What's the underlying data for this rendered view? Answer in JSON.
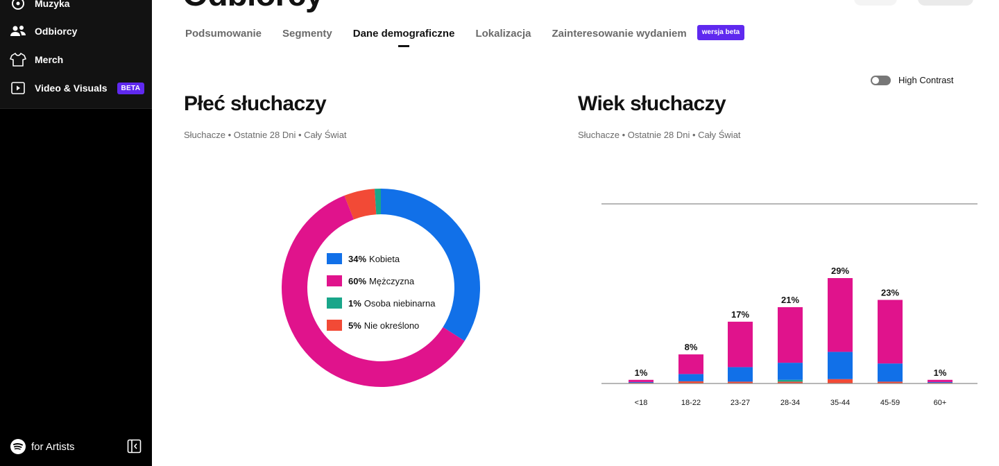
{
  "sidebar": {
    "items": [
      {
        "label": "Muzyka",
        "icon": "music-disc-icon"
      },
      {
        "label": "Odbiorcy",
        "icon": "audience-icon"
      },
      {
        "label": "Merch",
        "icon": "tshirt-icon"
      },
      {
        "label": "Video & Visuals",
        "icon": "video-icon",
        "badge": "BETA"
      }
    ],
    "brand": "for Artists"
  },
  "header": {
    "title": "Odbiorcy",
    "tabs": [
      {
        "label": "Podsumowanie",
        "active": false
      },
      {
        "label": "Segmenty",
        "active": false
      },
      {
        "label": "Dane demograficzne",
        "active": true
      },
      {
        "label": "Lokalizacja",
        "active": false
      },
      {
        "label": "Zainteresowanie wydaniem",
        "active": false
      }
    ],
    "tab_badge": "wersja beta"
  },
  "high_contrast": {
    "label": "High Contrast",
    "on": false
  },
  "gender_section": {
    "title": "Płeć słuchaczy",
    "subtitle": "Słuchacze • Ostatnie 28 Dni • Cały Świat"
  },
  "age_section": {
    "title": "Wiek słuchaczy",
    "subtitle": "Słuchacze • Ostatnie 28 Dni • Cały Świat"
  },
  "colors": {
    "female": "#1170e8",
    "male": "#e0138c",
    "nonbinary": "#19a68a",
    "unspecified": "#f24a36",
    "accent": "#5f29ef"
  },
  "chart_data": [
    {
      "type": "pie",
      "slices": [
        {
          "label": "Kobieta",
          "value": 34,
          "pct_text": "34%",
          "color": "#1170e8"
        },
        {
          "label": "Mężczyzna",
          "value": 60,
          "pct_text": "60%",
          "color": "#e0138c"
        },
        {
          "label": "Osoba niebinarna",
          "value": 1,
          "pct_text": "1%",
          "color": "#19a68a"
        },
        {
          "label": "Nie określono",
          "value": 5,
          "pct_text": "5%",
          "color": "#f24a36"
        }
      ]
    },
    {
      "type": "bar",
      "stacked": true,
      "categories": [
        "<18",
        "18-22",
        "23-27",
        "28-34",
        "35-44",
        "45-59",
        "60+"
      ],
      "totals": [
        1,
        8,
        17,
        21,
        29,
        23,
        1
      ],
      "total_labels": [
        "1%",
        "8%",
        "17%",
        "21%",
        "29%",
        "23%",
        "1%"
      ],
      "series": [
        {
          "key": "unspecified",
          "color": "#f24a36",
          "values": [
            0.2,
            0.6,
            0.5,
            0.5,
            1.2,
            0.5,
            0.2
          ]
        },
        {
          "key": "nonbinary",
          "color": "#19a68a",
          "values": [
            0,
            0,
            0,
            0.5,
            0,
            0,
            0
          ]
        },
        {
          "key": "female",
          "color": "#1170e8",
          "values": [
            0.2,
            2.0,
            4.0,
            4.7,
            7.5,
            5.0,
            0.2
          ]
        },
        {
          "key": "male",
          "color": "#e0138c",
          "values": [
            0.6,
            5.4,
            12.5,
            15.3,
            20.3,
            17.5,
            0.6
          ]
        }
      ],
      "ylim": [
        0,
        29
      ]
    }
  ]
}
